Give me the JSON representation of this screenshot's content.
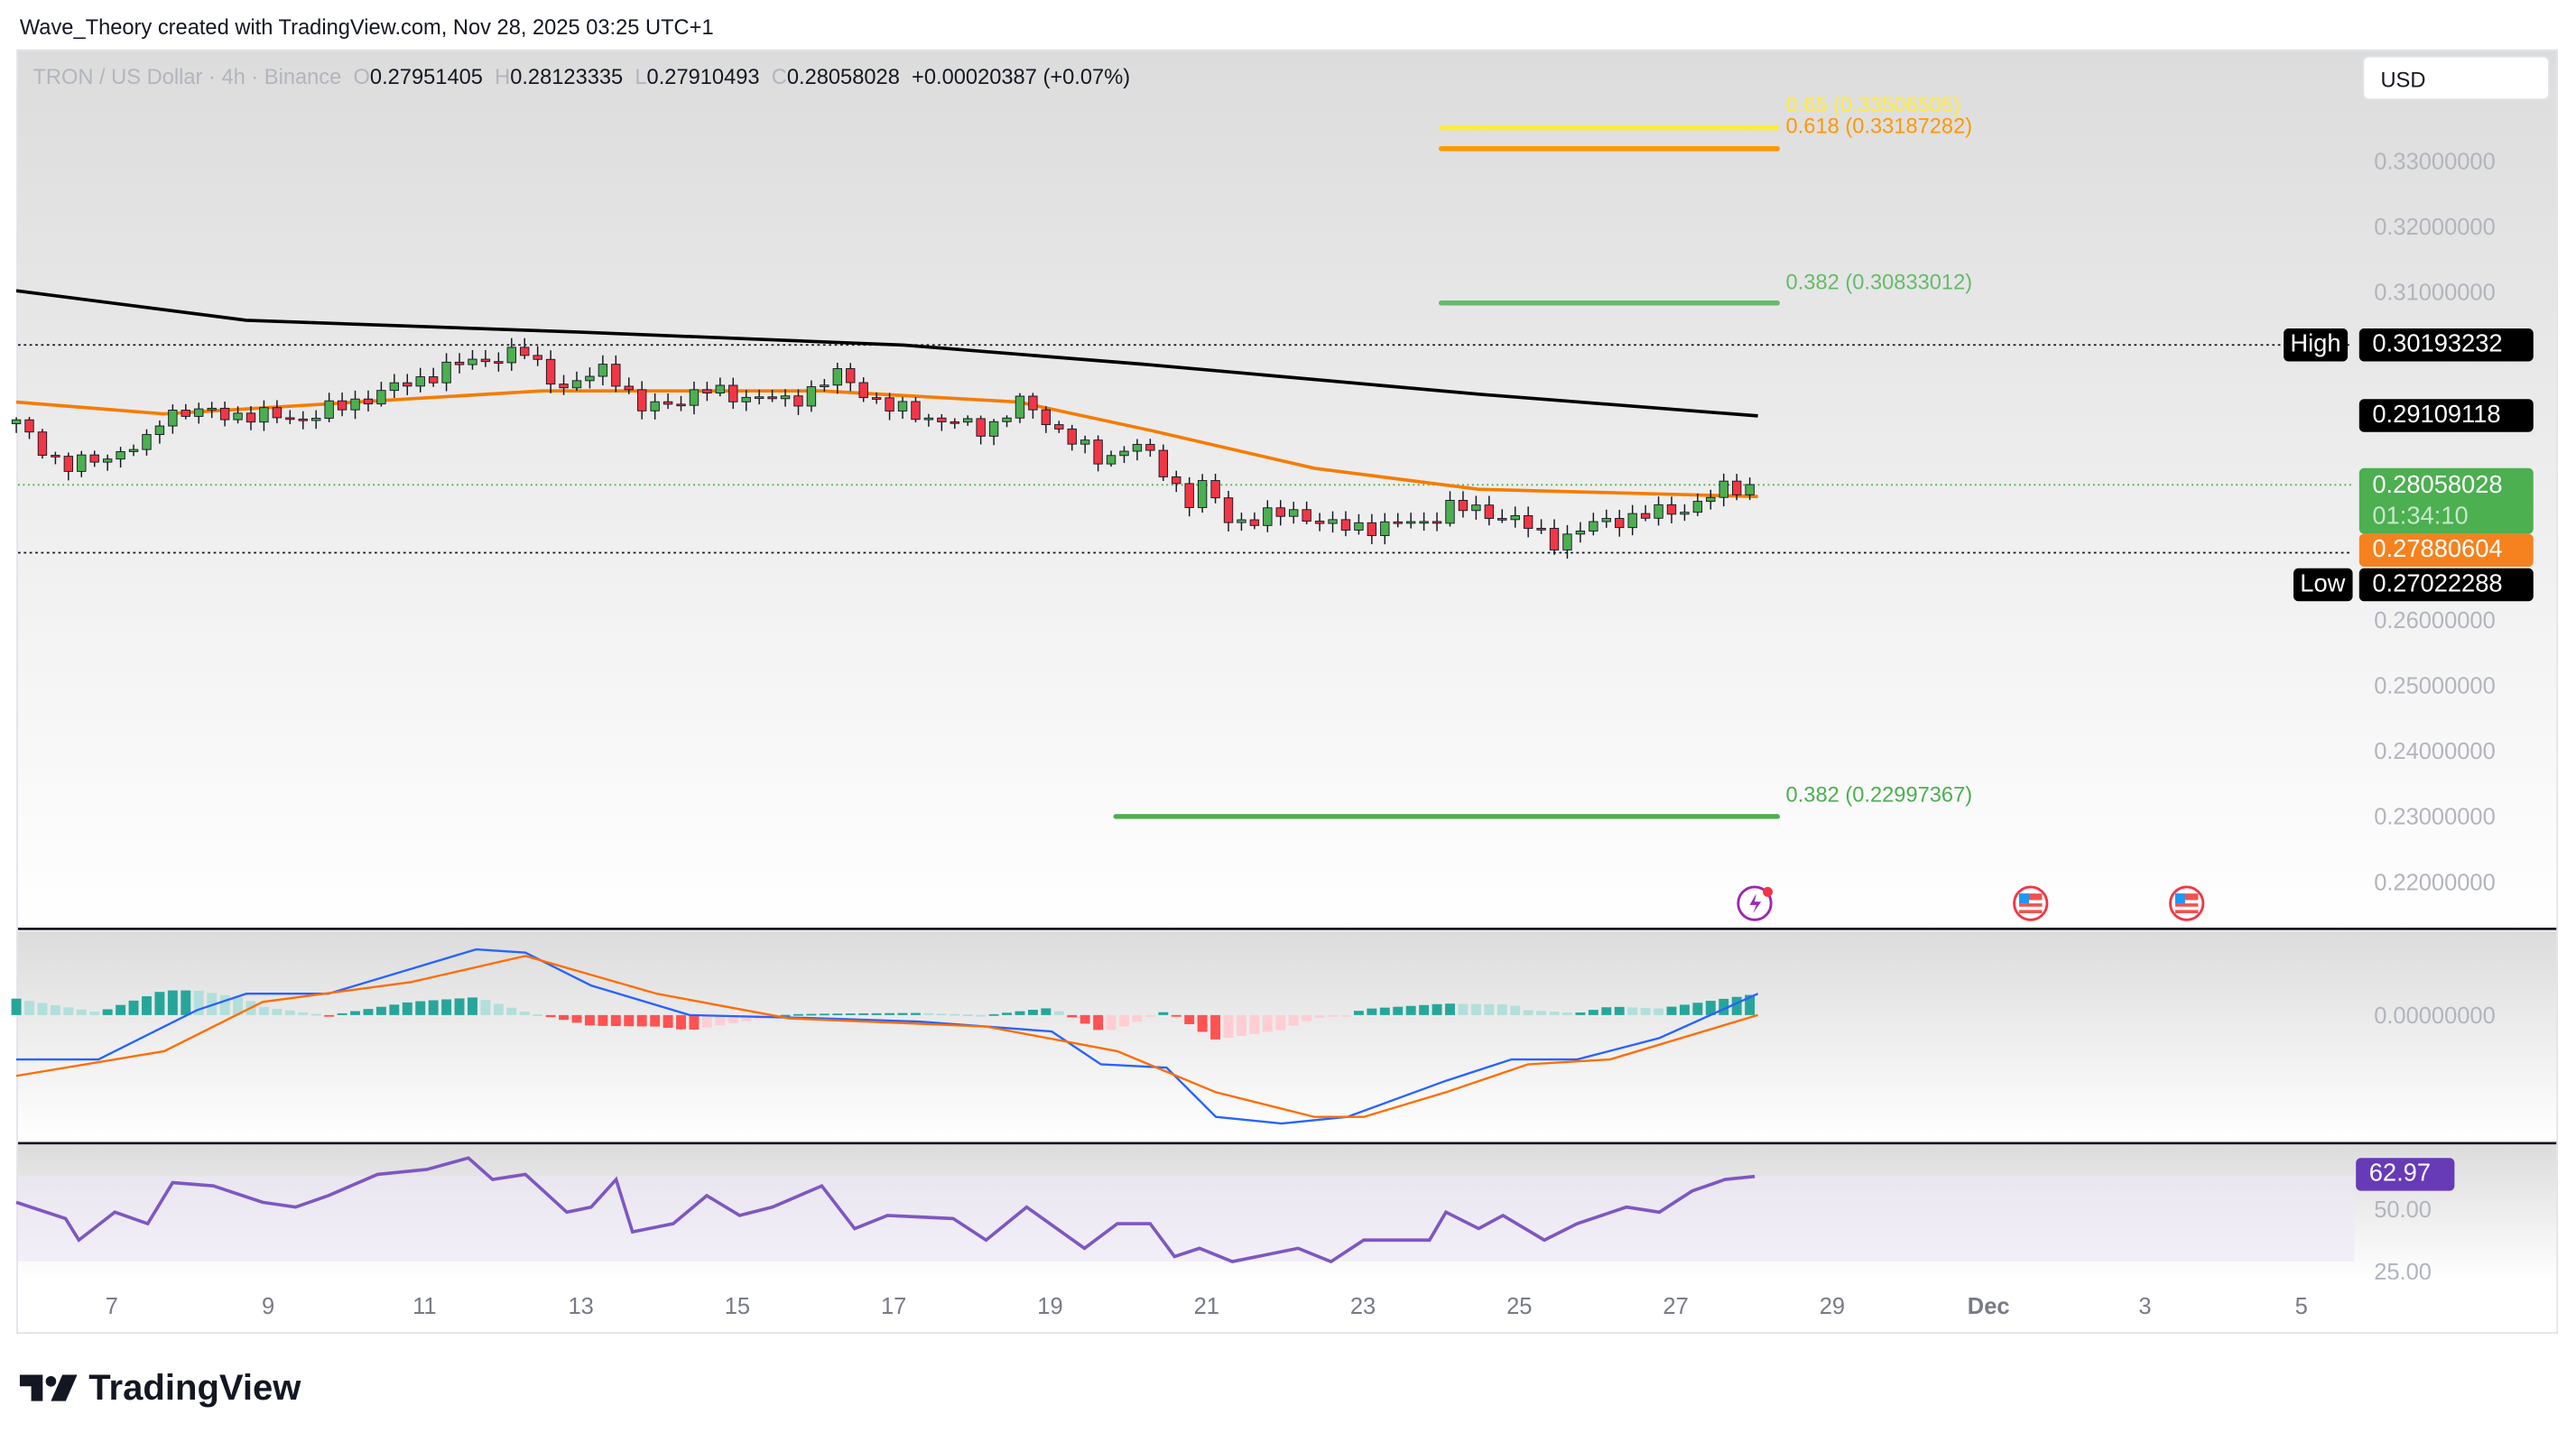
{
  "credit": "Wave_Theory created with TradingView.com, Nov 28, 2025 03:25 UTC+1",
  "legend": {
    "symbol": "TRON / US Dollar · 4h · Binance",
    "o_label": "O",
    "open": "0.27951405",
    "h_label": "H",
    "high": "0.28123335",
    "l_label": "L",
    "low": "0.27910493",
    "c_label": "C",
    "close": "0.28058028",
    "change": "+0.00020387 (+0.07%)"
  },
  "currency": "USD",
  "badges": {
    "high_label": "High",
    "high_value": "0.30193232",
    "ma200_value": "0.29109118",
    "last_price": "0.28058028",
    "countdown": "01:34:10",
    "ema_value": "0.27880604",
    "low_label": "Low",
    "low_value": "0.27022288"
  },
  "fib_levels": [
    {
      "label": "0.65 (0.33506505)",
      "price": 0.33506505,
      "color": "#ffeb3b",
      "from": 24.0,
      "to": 28.3
    },
    {
      "label": "0.618 (0.33187282)",
      "price": 0.33187282,
      "color": "#ff9800",
      "from": 24.0,
      "to": 28.3
    },
    {
      "label": "0.382 (0.30833012)",
      "price": 0.30833012,
      "color": "#66bb6a",
      "from": 24.0,
      "to": 28.3
    },
    {
      "label": "0.382 (0.22997367)",
      "price": 0.22997367,
      "color": "#4caf50",
      "from": 19.84,
      "to": 28.3
    }
  ],
  "logo_text": "TradingView",
  "colors": {
    "up": "#089981",
    "up_body": "#4caf50",
    "down": "#f23645",
    "ema": "#f57c00",
    "ma200": "#000000",
    "macd": "#2962ff",
    "signal": "#ff6d00",
    "rsi": "#7e57c2",
    "hist_up": "#26a69a",
    "hist_down": "#ff5252"
  },
  "chart_data": {
    "type": "candlestick",
    "interval": "4h",
    "x_unit": "day of November 2025",
    "price_axis": {
      "ticks": [
        "0.33000000",
        "0.32000000",
        "0.31000000",
        "0.26000000",
        "0.25000000",
        "0.24000000",
        "0.23000000",
        "0.22000000"
      ],
      "range": [
        0.215,
        0.3405
      ]
    },
    "x_ticks": [
      {
        "label": "7",
        "day": 7
      },
      {
        "label": "9",
        "day": 9
      },
      {
        "label": "11",
        "day": 11
      },
      {
        "label": "13",
        "day": 13
      },
      {
        "label": "15",
        "day": 15
      },
      {
        "label": "17",
        "day": 17
      },
      {
        "label": "19",
        "day": 19
      },
      {
        "label": "21",
        "day": 21
      },
      {
        "label": "23",
        "day": 23
      },
      {
        "label": "25",
        "day": 25
      },
      {
        "label": "27",
        "day": 27
      },
      {
        "label": "29",
        "day": 29
      },
      {
        "label": "Dec",
        "day": 31
      },
      {
        "label": "3",
        "day": 33
      },
      {
        "label": "5",
        "day": 35
      }
    ],
    "close_path": [
      [
        5.78,
        0.2899
      ],
      [
        6.41,
        0.2831
      ],
      [
        7.46,
        0.2869
      ],
      [
        7.67,
        0.2919
      ],
      [
        9.46,
        0.2907
      ],
      [
        10.51,
        0.2949
      ],
      [
        11.56,
        0.2994
      ],
      [
        12.29,
        0.3007
      ],
      [
        12.82,
        0.2949
      ],
      [
        13.34,
        0.2989
      ],
      [
        13.76,
        0.2919
      ],
      [
        14.61,
        0.2949
      ],
      [
        15.66,
        0.2932
      ],
      [
        16.29,
        0.2974
      ],
      [
        16.92,
        0.2924
      ],
      [
        18.18,
        0.2889
      ],
      [
        18.6,
        0.2932
      ],
      [
        19.23,
        0.2881
      ],
      [
        19.65,
        0.2839
      ],
      [
        20.07,
        0.2874
      ],
      [
        20.49,
        0.2819
      ],
      [
        20.8,
        0.2781
      ],
      [
        21.01,
        0.2814
      ],
      [
        21.22,
        0.2749
      ],
      [
        22.17,
        0.2764
      ],
      [
        22.69,
        0.2739
      ],
      [
        23.85,
        0.2749
      ],
      [
        24.06,
        0.2774
      ],
      [
        24.9,
        0.2756
      ],
      [
        25.42,
        0.2719
      ],
      [
        26.05,
        0.2749
      ],
      [
        27.1,
        0.2769
      ],
      [
        27.63,
        0.2799
      ],
      [
        28.01,
        0.2806
      ]
    ],
    "ema": [
      [
        5.78,
        0.2932
      ],
      [
        7.67,
        0.2914
      ],
      [
        10.82,
        0.2937
      ],
      [
        12.5,
        0.2949
      ],
      [
        16.08,
        0.2949
      ],
      [
        18.6,
        0.2932
      ],
      [
        20.28,
        0.2889
      ],
      [
        22.38,
        0.2831
      ],
      [
        24.48,
        0.2799
      ],
      [
        28.05,
        0.2788
      ]
    ],
    "ma200": [
      [
        5.78,
        0.3102
      ],
      [
        8.72,
        0.3057
      ],
      [
        12.92,
        0.3039
      ],
      [
        17.13,
        0.3019
      ],
      [
        20.28,
        0.2989
      ],
      [
        24.48,
        0.2944
      ],
      [
        28.05,
        0.2911
      ]
    ],
    "macd": {
      "zero_label": "0.00000000",
      "macd_line": [
        [
          5.78,
          -0.0027
        ],
        [
          6.83,
          -0.0027
        ],
        [
          8.09,
          0.0003
        ],
        [
          8.72,
          0.0013
        ],
        [
          9.77,
          0.0013
        ],
        [
          11.66,
          0.004
        ],
        [
          12.29,
          0.0038
        ],
        [
          13.13,
          0.0018
        ],
        [
          14.39,
          0
        ],
        [
          16.08,
          -0.0002
        ],
        [
          17.34,
          -0.0004
        ],
        [
          19.02,
          -0.001
        ],
        [
          19.65,
          -0.003
        ],
        [
          20.49,
          -0.0032
        ],
        [
          21.12,
          -0.0062
        ],
        [
          21.96,
          -0.0066
        ],
        [
          22.8,
          -0.0062
        ],
        [
          24.06,
          -0.004
        ],
        [
          24.9,
          -0.0027
        ],
        [
          25.74,
          -0.0027
        ],
        [
          26.79,
          -0.0014
        ],
        [
          28.05,
          0.0013
        ]
      ],
      "signal_line": [
        [
          5.78,
          -0.0037
        ],
        [
          7.67,
          -0.0022
        ],
        [
          8.93,
          0.0008
        ],
        [
          10.82,
          0.002
        ],
        [
          12.29,
          0.0036
        ],
        [
          13.97,
          0.0013
        ],
        [
          15.66,
          -0.0002
        ],
        [
          18.18,
          -0.0007
        ],
        [
          19.86,
          -0.0022
        ],
        [
          21.12,
          -0.0047
        ],
        [
          22.38,
          -0.0062
        ],
        [
          23.01,
          -0.0062
        ],
        [
          24.06,
          -0.0047
        ],
        [
          25.11,
          -0.003
        ],
        [
          26.16,
          -0.0027
        ],
        [
          28.05,
          0
        ]
      ]
    },
    "rsi": {
      "current": "62.97",
      "ticks": [
        "50.00",
        "25.00"
      ],
      "values": [
        [
          5.78,
          52.6
        ],
        [
          6.41,
          46.1
        ],
        [
          6.58,
          37.5
        ],
        [
          7.04,
          48.7
        ],
        [
          7.46,
          44.1
        ],
        [
          7.78,
          60.5
        ],
        [
          8.3,
          59.2
        ],
        [
          8.93,
          52.6
        ],
        [
          9.35,
          50.7
        ],
        [
          9.77,
          55.3
        ],
        [
          10.4,
          63.8
        ],
        [
          11.03,
          65.8
        ],
        [
          11.56,
          70.4
        ],
        [
          11.87,
          61.8
        ],
        [
          12.29,
          63.8
        ],
        [
          12.82,
          48.7
        ],
        [
          13.13,
          50.7
        ],
        [
          13.45,
          61.8
        ],
        [
          13.66,
          40.8
        ],
        [
          14.18,
          44.1
        ],
        [
          14.61,
          55.3
        ],
        [
          15.03,
          47.4
        ],
        [
          15.45,
          50.7
        ],
        [
          16.08,
          59.2
        ],
        [
          16.5,
          42.1
        ],
        [
          16.92,
          47.4
        ],
        [
          17.76,
          46.1
        ],
        [
          18.18,
          37.5
        ],
        [
          18.7,
          50.7
        ],
        [
          19.44,
          34.2
        ],
        [
          19.86,
          44.1
        ],
        [
          20.28,
          44.1
        ],
        [
          20.59,
          30.9
        ],
        [
          20.91,
          34.2
        ],
        [
          21.33,
          28.9
        ],
        [
          22.17,
          34.2
        ],
        [
          22.59,
          28.9
        ],
        [
          23.01,
          37.5
        ],
        [
          23.85,
          37.5
        ],
        [
          24.06,
          48.7
        ],
        [
          24.48,
          42.1
        ],
        [
          24.79,
          47.4
        ],
        [
          25.32,
          37.5
        ],
        [
          25.74,
          44.1
        ],
        [
          26.37,
          50.7
        ],
        [
          26.79,
          48.7
        ],
        [
          27.21,
          57.2
        ],
        [
          27.63,
          61.8
        ],
        [
          28.01,
          63.0
        ]
      ]
    }
  }
}
